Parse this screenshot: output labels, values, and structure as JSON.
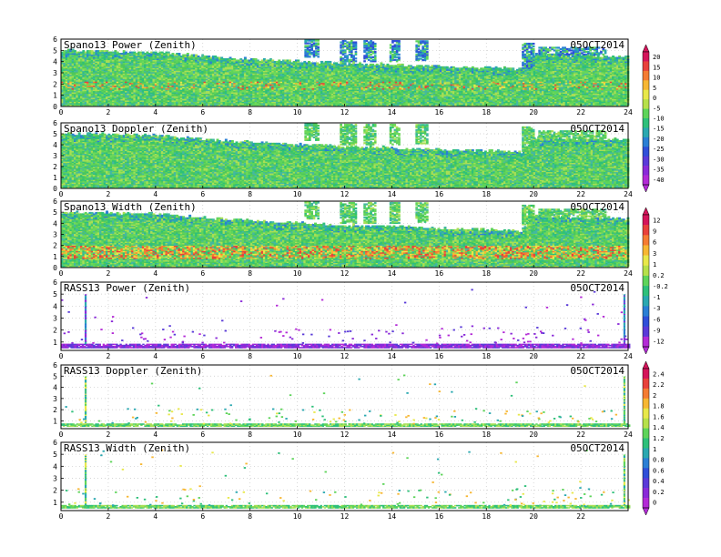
{
  "figure": {
    "shared_x": {
      "range": [
        0,
        24
      ],
      "grid": true
    },
    "x_tick_labels": [
      "0",
      "2",
      "4",
      "6",
      "8",
      "10",
      "12",
      "14",
      "16",
      "18",
      "20",
      "22",
      "24"
    ],
    "x_tick_labels_last_panel": [
      "0",
      "2",
      "4",
      "6",
      "8",
      "10",
      "12",
      "14",
      "16",
      "18",
      "20",
      "22"
    ],
    "y_tick_labels": [
      "0",
      "1",
      "2",
      "3",
      "4",
      "5",
      "6"
    ],
    "y_tick_labels_rass": [
      "1",
      "2",
      "3",
      "4",
      "5",
      "6"
    ]
  },
  "colorbars": [
    {
      "name": "power-colorbar",
      "labels": [
        "20",
        "15",
        "10",
        "5",
        "0",
        "-5",
        "-10",
        "-15",
        "-20",
        "-25",
        "-30",
        "-35",
        "-40"
      ],
      "colors": [
        "#d4145a",
        "#e8413b",
        "#f57c33",
        "#f7b733",
        "#e8e84a",
        "#b6e04a",
        "#5ed45a",
        "#2ec07a",
        "#2aa8b0",
        "#2a7fd4",
        "#2f4fd8",
        "#5a3ad8",
        "#8a2ad8",
        "#b32ad6"
      ]
    },
    {
      "name": "width-colorbar",
      "labels": [
        "12",
        "9",
        "6",
        "3",
        "1",
        "0.2",
        "-0.2",
        "-1",
        "-3",
        "-6",
        "-9",
        "-12"
      ],
      "colors": [
        "#d4145a",
        "#e8413b",
        "#f57c33",
        "#f7b733",
        "#e8e84a",
        "#b6e04a",
        "#5ed45a",
        "#2ec07a",
        "#2aa8b0",
        "#2a7fd4",
        "#2f4fd8",
        "#5a3ad8",
        "#b32ad6"
      ]
    },
    {
      "name": "rass-colorbar",
      "labels": [
        "2.4",
        "2.2",
        "2",
        "1.8",
        "1.6",
        "1.4",
        "1.2",
        "1",
        "0.8",
        "0.6",
        "0.4",
        "0.2",
        "0"
      ],
      "colors": [
        "#d4145a",
        "#e8413b",
        "#f57c33",
        "#f7b733",
        "#e8e84a",
        "#b6e04a",
        "#5ed45a",
        "#2ec07a",
        "#2aa8b0",
        "#2a7fd4",
        "#2f4fd8",
        "#5a3ad8",
        "#8a2ad8",
        "#b32ad6"
      ]
    }
  ],
  "palette": {
    "spano_base": [
      "#5ed45a",
      "#4fc75a",
      "#6fd85a",
      "#2ec07a",
      "#44b8a0",
      "#a8df55"
    ],
    "spano_warm": [
      "#e8e84a",
      "#f7b733",
      "#f57c33",
      "#e8413b"
    ],
    "rass_power": [
      "#8a2ad8",
      "#b32ad6",
      "#5a3ad8"
    ],
    "rass_green": [
      "#5ed45a",
      "#2ec07a",
      "#a8df55"
    ]
  },
  "chart_data": [
    {
      "type": "heatmap",
      "title": "Spano13 Power (Zenith)",
      "date": "05OCT2014",
      "xlim": [
        0,
        24
      ],
      "ylim": [
        0,
        6
      ],
      "color_scale": [
        -40,
        20
      ],
      "coverage_top_km": [
        [
          0,
          5.0
        ],
        [
          4,
          4.8
        ],
        [
          7,
          4.3
        ],
        [
          10,
          4.0
        ],
        [
          12,
          3.8
        ],
        [
          14,
          3.7
        ],
        [
          16,
          3.5
        ],
        [
          18,
          3.4
        ],
        [
          19.5,
          3.3
        ],
        [
          20,
          4.6
        ],
        [
          22,
          4.5
        ],
        [
          24,
          4.4
        ]
      ],
      "warm_band_km": [
        1.5,
        2.2
      ]
    },
    {
      "type": "heatmap",
      "title": "Spano13 Doppler (Zenith)",
      "date": "05OCT2014",
      "xlim": [
        0,
        24
      ],
      "ylim": [
        0,
        6
      ],
      "color_scale": [
        -40,
        20
      ],
      "coverage_top_km": [
        [
          0,
          5.0
        ],
        [
          4,
          4.8
        ],
        [
          7,
          4.3
        ],
        [
          10,
          4.0
        ],
        [
          12,
          3.8
        ],
        [
          14,
          3.7
        ],
        [
          16,
          3.5
        ],
        [
          18,
          3.4
        ],
        [
          19.5,
          3.3
        ],
        [
          20,
          4.6
        ],
        [
          22,
          4.5
        ],
        [
          24,
          4.4
        ]
      ]
    },
    {
      "type": "heatmap",
      "title": "Spano13 Width (Zenith)",
      "date": "05OCT2014",
      "xlim": [
        0,
        24
      ],
      "ylim": [
        0,
        6
      ],
      "color_scale": [
        -12,
        12
      ],
      "coverage_top_km": [
        [
          0,
          5.0
        ],
        [
          4,
          4.8
        ],
        [
          7,
          4.3
        ],
        [
          10,
          4.0
        ],
        [
          12,
          3.8
        ],
        [
          14,
          3.7
        ],
        [
          16,
          3.5
        ],
        [
          18,
          3.4
        ],
        [
          19.5,
          3.3
        ],
        [
          20,
          4.6
        ],
        [
          22,
          4.5
        ],
        [
          24,
          4.4
        ]
      ],
      "warm_band_km": [
        0.8,
        2.0
      ]
    },
    {
      "type": "heatmap",
      "title": "RASS13 Power (Zenith)",
      "date": "05OCT2014",
      "xlim": [
        0,
        24
      ],
      "ylim": [
        0.3,
        6
      ],
      "color_scale": [
        -12,
        12
      ],
      "dense_layer_km": [
        0.5,
        0.85
      ],
      "column_hours": [
        1.0,
        23.8
      ]
    },
    {
      "type": "heatmap",
      "title": "RASS13 Doppler (Zenith)",
      "date": "05OCT2014",
      "xlim": [
        0,
        24
      ],
      "ylim": [
        0.3,
        6
      ],
      "color_scale": [
        0,
        2.4
      ],
      "dense_layer_km": [
        0.5,
        0.75
      ],
      "column_hours": [
        1.0,
        23.8
      ]
    },
    {
      "type": "heatmap",
      "title": "RASS13 Width (Zenith)",
      "date": "05OCT2014",
      "xlim": [
        0,
        24
      ],
      "ylim": [
        0.3,
        6
      ],
      "color_scale": [
        0,
        2.4
      ],
      "dense_layer_km": [
        0.5,
        0.75
      ],
      "column_hours": [
        1.0,
        23.8
      ]
    }
  ]
}
